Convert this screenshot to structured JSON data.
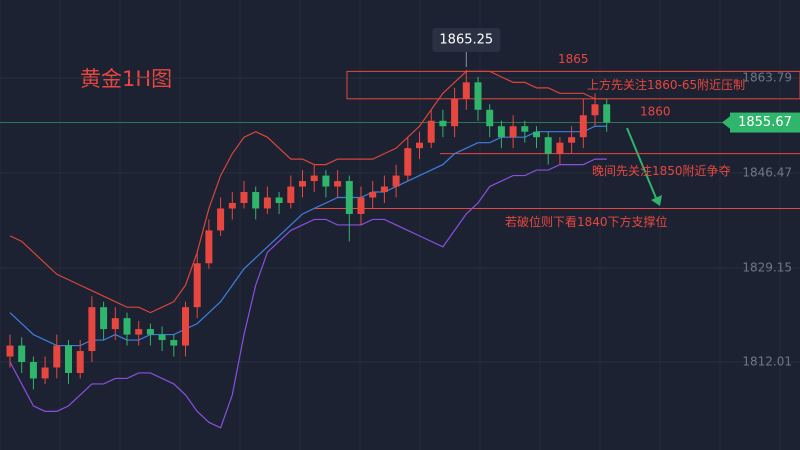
{
  "chart_data": {
    "type": "candlestick",
    "title": "黄金1H图",
    "open": [
      1813,
      1815,
      1812,
      1809,
      1811,
      1815,
      1810,
      1814,
      1822,
      1818,
      1820,
      1817,
      1818,
      1817,
      1816,
      1815,
      1822,
      1830,
      1836,
      1840,
      1841,
      1843,
      1840,
      1842,
      1841,
      1844,
      1845,
      1846,
      1844,
      1845,
      1839,
      1842,
      1843,
      1844,
      1846,
      1851,
      1852,
      1856,
      1855,
      1860,
      1863,
      1858,
      1855,
      1853,
      1855,
      1854,
      1853,
      1850,
      1852,
      1853,
      1857,
      1859
    ],
    "high": [
      1817,
      1816.5,
      1813,
      1813,
      1817,
      1816,
      1816,
      1824,
      1823,
      1822,
      1821,
      1819.5,
      1819,
      1818.5,
      1817,
      1823,
      1832,
      1838,
      1842,
      1843,
      1845,
      1844,
      1844,
      1843,
      1846,
      1847,
      1848,
      1847,
      1847,
      1846,
      1844,
      1845,
      1846,
      1848,
      1853,
      1854,
      1858,
      1858,
      1862,
      1865.25,
      1864,
      1859,
      1856,
      1857,
      1856,
      1855,
      1854,
      1853,
      1855,
      1860,
      1861,
      1860
    ],
    "low": [
      1811,
      1810,
      1807,
      1808,
      1809,
      1808,
      1809,
      1812,
      1816,
      1816,
      1815,
      1815,
      1815,
      1814,
      1813,
      1813,
      1820,
      1829,
      1835,
      1838,
      1840,
      1838,
      1839,
      1839,
      1840,
      1842,
      1843,
      1842,
      1842,
      1834,
      1837,
      1840,
      1841,
      1842,
      1845,
      1849,
      1851,
      1853,
      1853,
      1858,
      1856,
      1853,
      1851,
      1851,
      1852,
      1851,
      1848,
      1848,
      1850,
      1851,
      1855,
      1854
    ],
    "close": [
      1815,
      1812,
      1809,
      1811,
      1815,
      1810,
      1814,
      1822,
      1818,
      1820,
      1817,
      1818,
      1817,
      1816,
      1815,
      1822,
      1830,
      1836,
      1840,
      1841,
      1843,
      1840,
      1842,
      1841,
      1844,
      1845,
      1846,
      1844,
      1845,
      1839,
      1842,
      1843,
      1844,
      1846,
      1851,
      1852,
      1856,
      1855,
      1860,
      1863,
      1858,
      1855,
      1853,
      1855,
      1854,
      1853,
      1850,
      1852,
      1853,
      1857,
      1859,
      1855.67
    ],
    "up_color": "#e8473f",
    "down_color": "#2fb56c",
    "lines": [
      {
        "color": "#d9453a",
        "values": [
          1835,
          1834,
          1832,
          1830,
          1828,
          1827,
          1826,
          1825,
          1824,
          1823,
          1822,
          1822,
          1821,
          1822,
          1823,
          1826,
          1832,
          1840,
          1846,
          1850,
          1853,
          1854,
          1853,
          1851,
          1849,
          1849,
          1848,
          1848,
          1849,
          1849,
          1849,
          1849,
          1850,
          1851,
          1853,
          1855,
          1858,
          1861,
          1863,
          1865,
          1865,
          1865,
          1864,
          1863,
          1863,
          1862,
          1862,
          1861,
          1861,
          1861,
          1860,
          1860
        ]
      },
      {
        "color": "#3d7fe0",
        "values": [
          1821,
          1819,
          1817,
          1816,
          1815,
          1815,
          1815,
          1816,
          1816,
          1817,
          1816,
          1816,
          1817,
          1817,
          1817,
          1818,
          1819,
          1821,
          1823,
          1826,
          1829,
          1831,
          1833,
          1835,
          1837,
          1839,
          1840,
          1841,
          1842,
          1842,
          1842,
          1843,
          1843,
          1844,
          1845,
          1846,
          1847,
          1848,
          1850,
          1851,
          1852,
          1852,
          1853,
          1853,
          1853,
          1854,
          1854,
          1854,
          1854,
          1854,
          1855,
          1855
        ]
      },
      {
        "color": "#8a4fe0",
        "values": [
          1812,
          1808,
          1804,
          1803,
          1803,
          1804,
          1806,
          1808,
          1808,
          1809,
          1809,
          1810,
          1810,
          1809,
          1808,
          1806,
          1803,
          1801,
          1800,
          1806,
          1817,
          1826,
          1832,
          1834,
          1836,
          1837,
          1838,
          1838,
          1837,
          1837,
          1837,
          1838,
          1838,
          1837,
          1836,
          1835,
          1834,
          1833,
          1836,
          1839,
          1841,
          1844,
          1845,
          1846,
          1846,
          1847,
          1847,
          1848,
          1848,
          1848,
          1849,
          1849
        ]
      }
    ],
    "ylim": [
      1795.95,
      1878.02
    ],
    "yticks": [
      1863.79,
      1846.47,
      1829.15,
      1812.01
    ],
    "last_price": 1855.67,
    "last_price_color": "#2fb56c",
    "resistance": {
      "low": 1860,
      "high": 1865
    },
    "supports": [
      1850,
      1840
    ],
    "annotations": [
      "上方先关注1860-65附近压制",
      "晚间先关注1850附近争夺",
      "若破位则下看1840下方支撑位"
    ]
  }
}
